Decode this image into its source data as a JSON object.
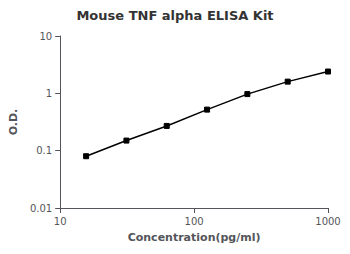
{
  "chart_data": {
    "type": "line",
    "title": "Mouse TNF alpha ELISA Kit",
    "xlabel": "Concentration(pg/ml)",
    "ylabel": "O.D.",
    "x": [
      15.625,
      31.25,
      62.5,
      125,
      250,
      500,
      1000
    ],
    "values": [
      0.08,
      0.15,
      0.27,
      0.52,
      0.97,
      1.6,
      2.4
    ],
    "color": "#000000",
    "marker": "square",
    "log": true,
    "xlim": [
      10,
      1000
    ],
    "xticks": [
      10,
      100,
      1000
    ],
    "ylim": [
      0.01,
      10
    ],
    "yticks": [
      0.01,
      0.1,
      1,
      10
    ],
    "grid": false
  }
}
